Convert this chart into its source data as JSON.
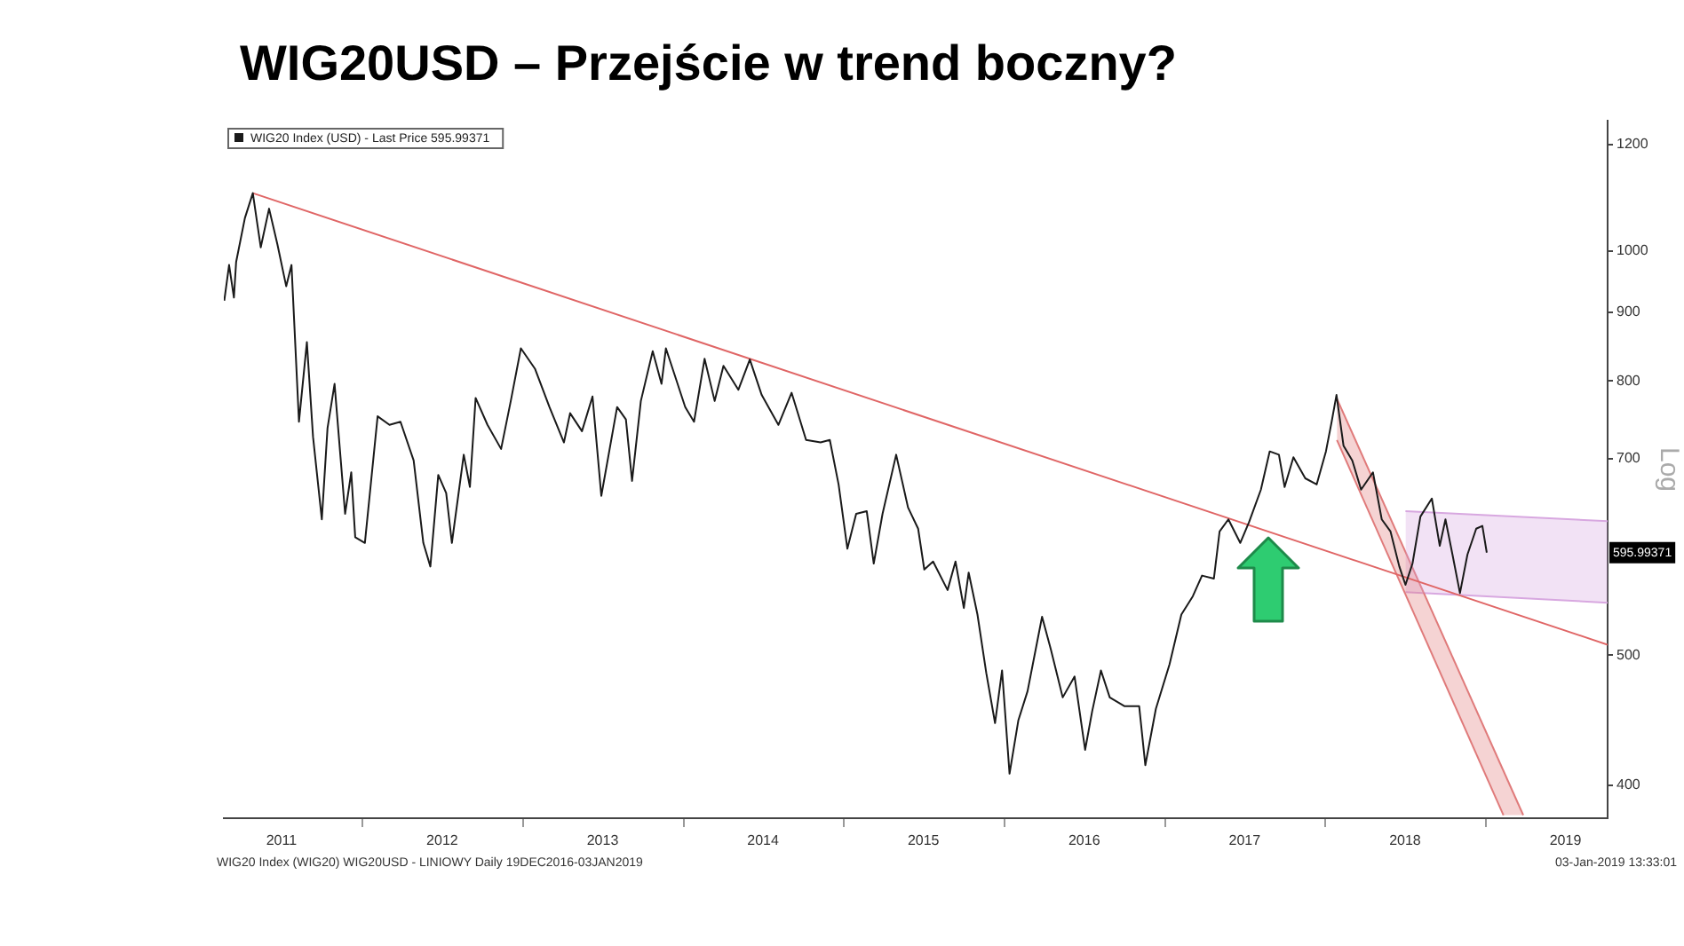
{
  "chart_data": {
    "type": "line",
    "title": "WIG20USD – Przejście w trend boczny?",
    "ylabel": "Log",
    "log": "y",
    "grid": false,
    "marker": "none",
    "legend": "top left",
    "xlim": [
      "2011-02-20",
      "2019-10-05"
    ],
    "ylim": [
      378,
      1250
    ],
    "xticks": [
      {
        "value": "2011-07-01",
        "label": "2011"
      },
      {
        "value": "2012-01-01",
        "label": null
      },
      {
        "value": "2012-07-01",
        "label": "2012"
      },
      {
        "value": "2013-01-01",
        "label": null
      },
      {
        "value": "2013-07-01",
        "label": "2013"
      },
      {
        "value": "2014-01-01",
        "label": null
      },
      {
        "value": "2014-07-01",
        "label": "2014"
      },
      {
        "value": "2015-01-01",
        "label": null
      },
      {
        "value": "2015-07-01",
        "label": "2015"
      },
      {
        "value": "2016-01-01",
        "label": null
      },
      {
        "value": "2016-07-01",
        "label": "2016"
      },
      {
        "value": "2017-01-01",
        "label": null
      },
      {
        "value": "2017-07-01",
        "label": "2017"
      },
      {
        "value": "2018-01-01",
        "label": null
      },
      {
        "value": "2018-07-01",
        "label": "2018"
      },
      {
        "value": "2019-01-01",
        "label": null
      },
      {
        "value": "2019-07-01",
        "label": "2019"
      }
    ],
    "yticks": [
      400,
      500,
      700,
      800,
      900,
      1000,
      1200
    ],
    "annotations": [
      "WIG20 Index (WIG20) WIG20USD - LINIOWY Daily 19DEC2016-03JAN2019",
      "03-Jan-2019 13:33:01",
      {
        "text": "595.99371",
        "y": 595.99371
      }
    ],
    "series": [
      {
        "type": "line",
        "name": "WIG20 Index (USD) - Last Price 595.99371",
        "color": "#1a1a1a",
        "x": [
          "2011-02-21",
          "2011-03-04",
          "2011-03-15",
          "2011-03-20",
          "2011-04-09",
          "2011-04-27",
          "2011-05-15",
          "2011-06-03",
          "2011-06-22",
          "2011-07-12",
          "2011-07-24",
          "2011-08-10",
          "2011-08-28",
          "2011-09-11",
          "2011-10-01",
          "2011-10-14",
          "2011-10-30",
          "2011-11-23",
          "2011-12-07",
          "2011-12-16",
          "2012-01-07",
          "2012-02-05",
          "2012-03-03",
          "2012-03-28",
          "2012-04-27",
          "2012-05-19",
          "2012-06-04",
          "2012-06-22",
          "2012-07-10",
          "2012-07-23",
          "2012-08-19",
          "2012-09-02",
          "2012-09-15",
          "2012-10-12",
          "2012-11-12",
          "2012-12-04",
          "2012-12-27",
          "2013-01-28",
          "2013-03-02",
          "2013-04-04",
          "2013-04-18",
          "2013-05-15",
          "2013-06-08",
          "2013-06-28",
          "2013-08-03",
          "2013-08-23",
          "2013-09-06",
          "2013-09-26",
          "2013-10-23",
          "2013-11-12",
          "2013-11-22",
          "2014-01-05",
          "2014-01-25",
          "2014-02-18",
          "2014-03-13",
          "2014-04-02",
          "2014-05-06",
          "2014-06-01",
          "2014-06-28",
          "2014-08-05",
          "2014-09-04",
          "2014-10-07",
          "2014-11-09",
          "2014-11-30",
          "2014-12-20",
          "2015-01-09",
          "2015-01-29",
          "2015-02-22",
          "2015-03-10",
          "2015-03-30",
          "2015-04-30",
          "2015-05-27",
          "2015-06-19",
          "2015-07-03",
          "2015-07-23",
          "2015-08-25",
          "2015-09-12",
          "2015-10-01",
          "2015-10-12",
          "2015-11-01",
          "2015-11-21",
          "2015-12-11",
          "2015-12-27",
          "2016-01-13",
          "2016-02-02",
          "2016-02-23",
          "2016-03-27",
          "2016-04-16",
          "2016-05-13",
          "2016-06-09",
          "2016-07-03",
          "2016-07-19",
          "2016-08-08",
          "2016-08-28",
          "2016-10-01",
          "2016-11-03",
          "2016-11-17",
          "2016-12-11",
          "2017-01-11",
          "2017-02-07",
          "2017-03-05",
          "2017-03-26",
          "2017-04-22",
          "2017-05-05",
          "2017-05-25",
          "2017-06-21",
          "2017-07-11",
          "2017-08-07",
          "2017-08-27",
          "2017-09-17",
          "2017-09-30",
          "2017-10-20",
          "2017-11-16",
          "2017-12-12",
          "2018-01-02",
          "2018-01-15",
          "2018-01-26",
          "2018-02-11",
          "2018-03-03",
          "2018-03-23",
          "2018-04-19",
          "2018-05-09",
          "2018-05-29",
          "2018-06-18",
          "2018-07-02",
          "2018-07-18",
          "2018-08-05",
          "2018-08-31",
          "2018-09-18",
          "2018-10-01",
          "2018-10-17",
          "2018-11-03",
          "2018-11-20",
          "2018-12-10",
          "2018-12-24",
          "2019-01-03"
        ],
        "values": [
          918,
          976,
          923,
          981,
          1058,
          1104,
          1006,
          1075,
          1011,
          941,
          976,
          746,
          855,
          727,
          631,
          738,
          796,
          637,
          684,
          612,
          606,
          753,
          742,
          746,
          698,
          606,
          582,
          681,
          660,
          606,
          705,
          667,
          777,
          742,
          712,
          773,
          846,
          817,
          765,
          720,
          757,
          734,
          779,
          657,
          765,
          749,
          674,
          773,
          842,
          796,
          846,
          765,
          746,
          831,
          773,
          821,
          788,
          830,
          781,
          742,
          784,
          723,
          720,
          723,
          670,
          600,
          637,
          640,
          585,
          637,
          705,
          644,
          621,
          579,
          587,
          559,
          587,
          542,
          576,
          536,
          485,
          445,
          487,
          408,
          447,
          470,
          534,
          505,
          465,
          482,
          425,
          454,
          487,
          465,
          458,
          458,
          414,
          456,
          492,
          536,
          553,
          573,
          570,
          618,
          631,
          606,
          628,
          664,
          709,
          705,
          667,
          702,
          677,
          670,
          709,
          746,
          781,
          716,
          698,
          664,
          684,
          631,
          618,
          582,
          564,
          585,
          634,
          654,
          603,
          631,
          594,
          556,
          594,
          621,
          624,
          595.99371
        ]
      },
      {
        "type": "line",
        "color": "#e06666",
        "x": [
          "2011-04-27",
          "2019-10-05"
        ],
        "values": [
          1104,
          509
        ]
      },
      {
        "type": "line",
        "color": "#e07b7b",
        "x": [
          "2018-01-27",
          "2019-02-10",
          "2019-03-27"
        ],
        "values": [
          null,
          null,
          null
        ],
        "lower": [
          723,
          380,
          380
        ],
        "upper": [
          776,
          409,
          380
        ]
      },
      {
        "type": "line",
        "color": "#d8a8e0",
        "x": [
          "2018-07-02",
          "2019-10-05"
        ],
        "values": [
          null,
          null
        ],
        "lower": [
          557,
          547
        ],
        "upper": [
          640,
          629
        ]
      },
      {
        "type": "line",
        "color": "#e07b7b",
        "x": [
          "2018-01-27",
          "2019-03-27"
        ],
        "values": [
          776,
          380
        ]
      },
      {
        "type": "line",
        "color": "#e07b7b",
        "x": [
          "2018-01-27",
          "2019-02-10"
        ],
        "values": [
          723,
          380
        ]
      },
      {
        "type": "line",
        "color": "#d8a8e0",
        "x": [
          "2018-07-02",
          "2019-10-05"
        ],
        "values": [
          640,
          629
        ]
      },
      {
        "type": "line",
        "color": "#d8a8e0",
        "x": [
          "2018-07-02",
          "2019-10-05"
        ],
        "values": [
          557,
          547
        ]
      }
    ]
  }
}
